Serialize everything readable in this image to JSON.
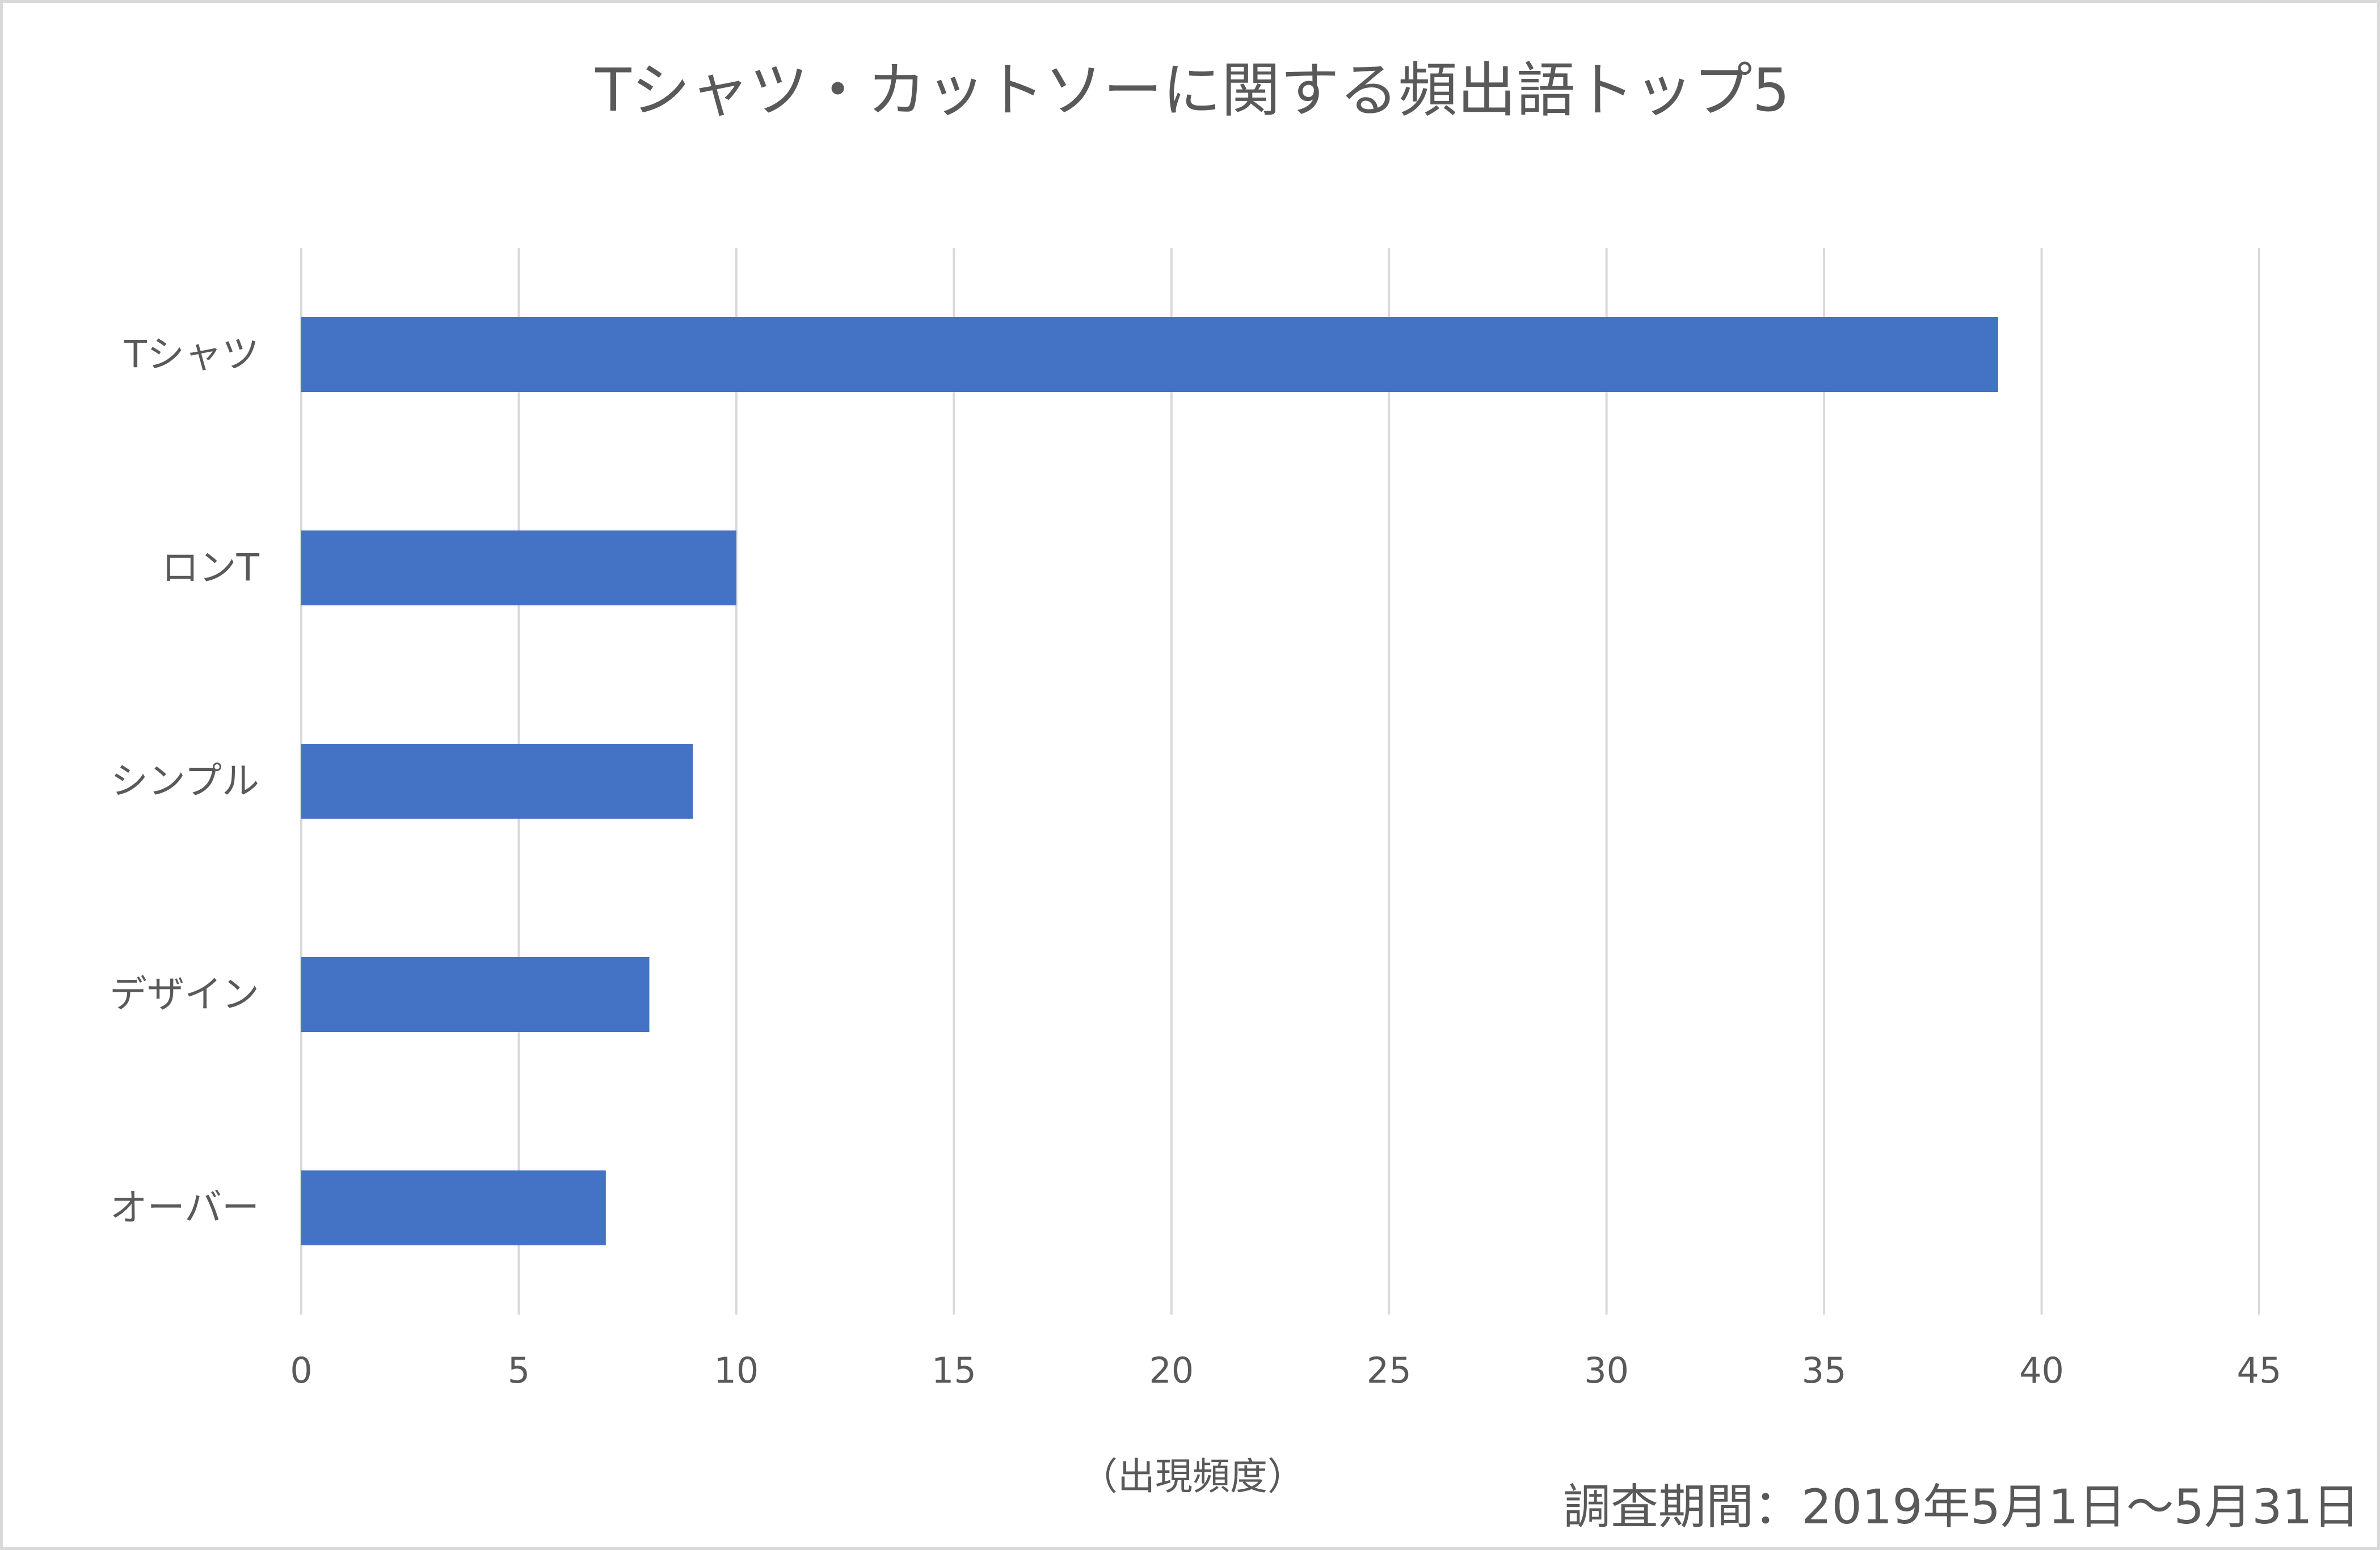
{
  "chart_data": {
    "type": "bar",
    "orientation": "horizontal",
    "title": "Tシャツ・カットソーに関する頻出語トップ5",
    "categories": [
      "Tシャツ",
      "ロンT",
      "シンプル",
      "デザイン",
      "オーバー"
    ],
    "values": [
      39,
      10,
      9,
      8,
      7
    ],
    "xlabel": "（出現頻度）",
    "ylabel": "",
    "xlim": [
      0,
      45
    ],
    "xticks": [
      0,
      5,
      10,
      15,
      20,
      25,
      30,
      35,
      40,
      45
    ],
    "grid": "vertical",
    "legend": "none",
    "bar_color": "#4472c4",
    "grid_color": "#d9d9d9",
    "text_color": "#595959",
    "note": "調査期間：2019年5月1日～5月31日"
  }
}
